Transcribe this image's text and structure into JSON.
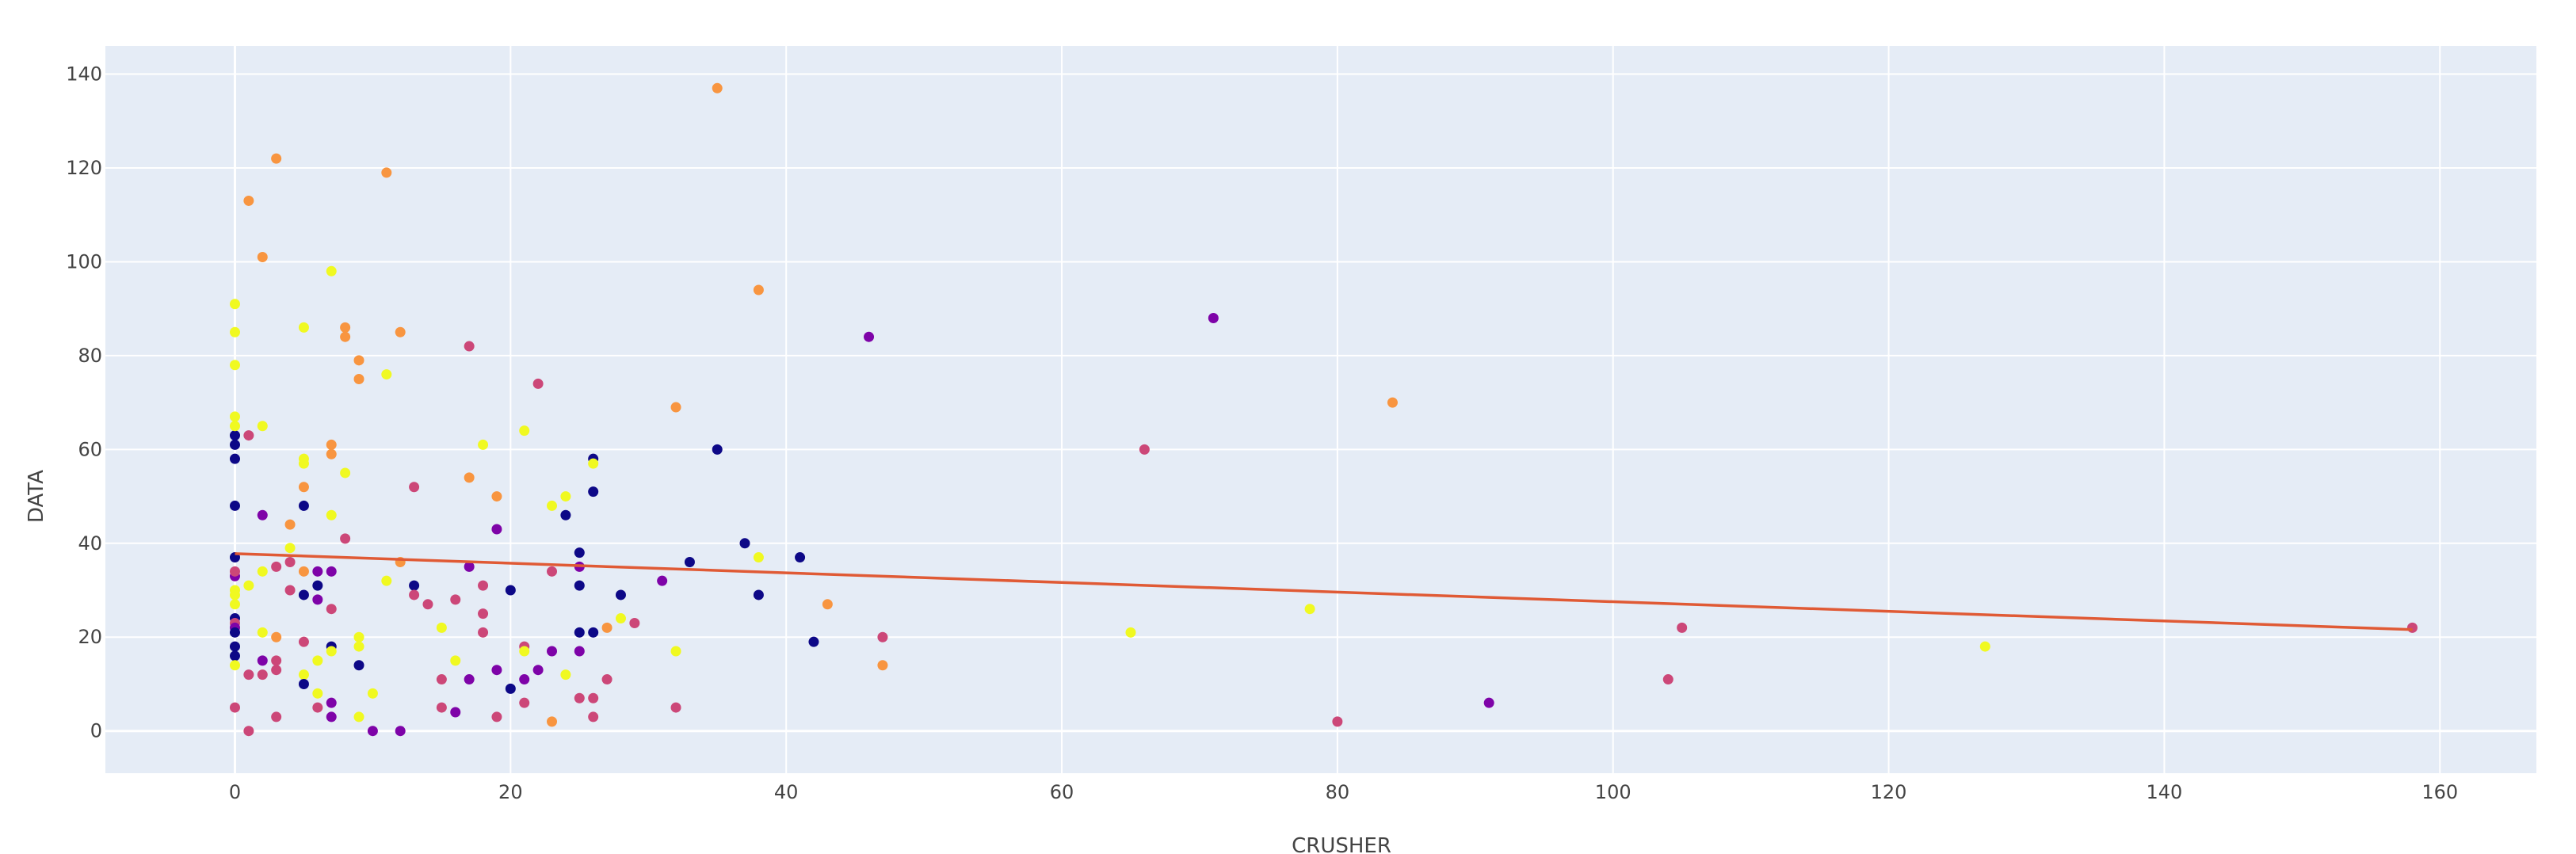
{
  "chart_data": {
    "type": "scatter",
    "xlabel": "CRUSHER",
    "ylabel": "DATA",
    "xlim": [
      -9.4,
      167
    ],
    "ylim": [
      -9,
      146
    ],
    "x_ticks": [
      0,
      20,
      40,
      60,
      80,
      100,
      120,
      140,
      160
    ],
    "y_ticks": [
      0,
      20,
      40,
      60,
      80,
      100,
      120,
      140
    ],
    "grid": true,
    "legend": "none",
    "colors": {
      "plot_background": "#e5ecf6",
      "grid": "#ffffff",
      "trendline": "#e05a35",
      "palette": [
        "#0d0887",
        "#7e03a8",
        "#cc4778",
        "#f89540",
        "#f0f921"
      ]
    },
    "trendline": {
      "x": [
        0,
        158
      ],
      "y": [
        37.8,
        21.6
      ]
    },
    "points": [
      [
        0,
        63,
        0
      ],
      [
        0,
        61,
        0
      ],
      [
        0,
        58,
        0
      ],
      [
        0,
        48,
        0
      ],
      [
        0,
        37,
        0
      ],
      [
        0,
        33,
        1
      ],
      [
        0,
        34,
        2
      ],
      [
        0,
        30,
        4
      ],
      [
        0,
        29,
        4
      ],
      [
        0,
        27,
        4
      ],
      [
        0,
        24,
        0
      ],
      [
        0,
        23,
        2
      ],
      [
        0,
        22,
        1
      ],
      [
        0,
        21,
        0
      ],
      [
        0,
        18,
        0
      ],
      [
        0,
        16,
        0
      ],
      [
        0,
        14,
        4
      ],
      [
        0,
        5,
        2
      ],
      [
        0,
        91,
        4
      ],
      [
        0,
        85,
        4
      ],
      [
        0,
        78,
        4
      ],
      [
        0,
        67,
        4
      ],
      [
        0,
        65,
        4
      ],
      [
        1,
        63,
        2
      ],
      [
        1,
        113,
        3
      ],
      [
        1,
        31,
        4
      ],
      [
        1,
        12,
        2
      ],
      [
        1,
        0,
        2
      ],
      [
        2,
        101,
        3
      ],
      [
        2,
        65,
        4
      ],
      [
        2,
        46,
        1
      ],
      [
        2,
        34,
        4
      ],
      [
        2,
        21,
        4
      ],
      [
        2,
        15,
        1
      ],
      [
        2,
        12,
        2
      ],
      [
        3,
        122,
        3
      ],
      [
        3,
        35,
        2
      ],
      [
        3,
        20,
        3
      ],
      [
        3,
        15,
        2
      ],
      [
        3,
        13,
        2
      ],
      [
        3,
        3,
        2
      ],
      [
        4,
        44,
        3
      ],
      [
        4,
        39,
        4
      ],
      [
        4,
        36,
        2
      ],
      [
        4,
        30,
        2
      ],
      [
        5,
        86,
        4
      ],
      [
        5,
        58,
        4
      ],
      [
        5,
        57,
        4
      ],
      [
        5,
        52,
        3
      ],
      [
        5,
        48,
        0
      ],
      [
        5,
        34,
        3
      ],
      [
        5,
        29,
        0
      ],
      [
        5,
        19,
        2
      ],
      [
        5,
        12,
        4
      ],
      [
        5,
        10,
        0
      ],
      [
        6,
        34,
        1
      ],
      [
        6,
        31,
        0
      ],
      [
        6,
        28,
        1
      ],
      [
        6,
        15,
        4
      ],
      [
        6,
        8,
        4
      ],
      [
        6,
        5,
        2
      ],
      [
        7,
        98,
        4
      ],
      [
        7,
        61,
        3
      ],
      [
        7,
        59,
        3
      ],
      [
        7,
        46,
        4
      ],
      [
        7,
        34,
        1
      ],
      [
        7,
        26,
        2
      ],
      [
        7,
        18,
        0
      ],
      [
        7,
        17,
        4
      ],
      [
        7,
        6,
        1
      ],
      [
        7,
        3,
        1
      ],
      [
        8,
        86,
        3
      ],
      [
        8,
        84,
        3
      ],
      [
        8,
        55,
        4
      ],
      [
        8,
        41,
        2
      ],
      [
        9,
        79,
        3
      ],
      [
        9,
        75,
        3
      ],
      [
        9,
        20,
        4
      ],
      [
        9,
        18,
        4
      ],
      [
        9,
        14,
        0
      ],
      [
        9,
        3,
        4
      ],
      [
        10,
        8,
        4
      ],
      [
        10,
        0,
        1
      ],
      [
        11,
        119,
        3
      ],
      [
        11,
        76,
        4
      ],
      [
        11,
        32,
        4
      ],
      [
        12,
        85,
        3
      ],
      [
        12,
        36,
        3
      ],
      [
        12,
        0,
        1
      ],
      [
        13,
        52,
        2
      ],
      [
        13,
        31,
        0
      ],
      [
        13,
        29,
        2
      ],
      [
        14,
        27,
        2
      ],
      [
        15,
        22,
        4
      ],
      [
        15,
        11,
        2
      ],
      [
        15,
        5,
        2
      ],
      [
        16,
        15,
        4
      ],
      [
        16,
        28,
        2
      ],
      [
        16,
        4,
        1
      ],
      [
        17,
        82,
        2
      ],
      [
        17,
        54,
        3
      ],
      [
        17,
        35,
        1
      ],
      [
        17,
        11,
        1
      ],
      [
        18,
        61,
        4
      ],
      [
        18,
        31,
        2
      ],
      [
        18,
        25,
        2
      ],
      [
        18,
        21,
        2
      ],
      [
        19,
        50,
        3
      ],
      [
        19,
        43,
        1
      ],
      [
        19,
        13,
        1
      ],
      [
        19,
        3,
        2
      ],
      [
        20,
        30,
        0
      ],
      [
        20,
        9,
        0
      ],
      [
        21,
        64,
        4
      ],
      [
        21,
        18,
        2
      ],
      [
        21,
        17,
        4
      ],
      [
        21,
        11,
        1
      ],
      [
        21,
        6,
        2
      ],
      [
        22,
        74,
        2
      ],
      [
        22,
        13,
        1
      ],
      [
        23,
        48,
        4
      ],
      [
        23,
        34,
        2
      ],
      [
        23,
        17,
        1
      ],
      [
        23,
        2,
        3
      ],
      [
        24,
        50,
        4
      ],
      [
        24,
        46,
        0
      ],
      [
        24,
        12,
        4
      ],
      [
        25,
        38,
        0
      ],
      [
        25,
        35,
        1
      ],
      [
        25,
        31,
        0
      ],
      [
        25,
        21,
        0
      ],
      [
        25,
        17,
        1
      ],
      [
        25,
        7,
        2
      ],
      [
        26,
        58,
        0
      ],
      [
        26,
        57,
        4
      ],
      [
        26,
        51,
        0
      ],
      [
        26,
        21,
        0
      ],
      [
        26,
        7,
        2
      ],
      [
        26,
        3,
        2
      ],
      [
        27,
        22,
        3
      ],
      [
        27,
        11,
        2
      ],
      [
        28,
        29,
        0
      ],
      [
        28,
        24,
        4
      ],
      [
        29,
        23,
        2
      ],
      [
        31,
        32,
        1
      ],
      [
        32,
        69,
        3
      ],
      [
        32,
        17,
        4
      ],
      [
        32,
        5,
        2
      ],
      [
        33,
        36,
        0
      ],
      [
        35,
        137,
        3
      ],
      [
        35,
        60,
        0
      ],
      [
        37,
        40,
        0
      ],
      [
        38,
        94,
        3
      ],
      [
        38,
        37,
        4
      ],
      [
        38,
        29,
        0
      ],
      [
        41,
        37,
        0
      ],
      [
        42,
        19,
        0
      ],
      [
        43,
        27,
        3
      ],
      [
        46,
        84,
        1
      ],
      [
        47,
        20,
        2
      ],
      [
        47,
        14,
        3
      ],
      [
        65,
        21,
        4
      ],
      [
        66,
        60,
        2
      ],
      [
        71,
        88,
        1
      ],
      [
        78,
        26,
        4
      ],
      [
        80,
        2,
        2
      ],
      [
        84,
        70,
        3
      ],
      [
        91,
        6,
        1
      ],
      [
        104,
        11,
        2
      ],
      [
        105,
        22,
        2
      ],
      [
        127,
        18,
        4
      ],
      [
        158,
        22,
        2
      ]
    ]
  }
}
